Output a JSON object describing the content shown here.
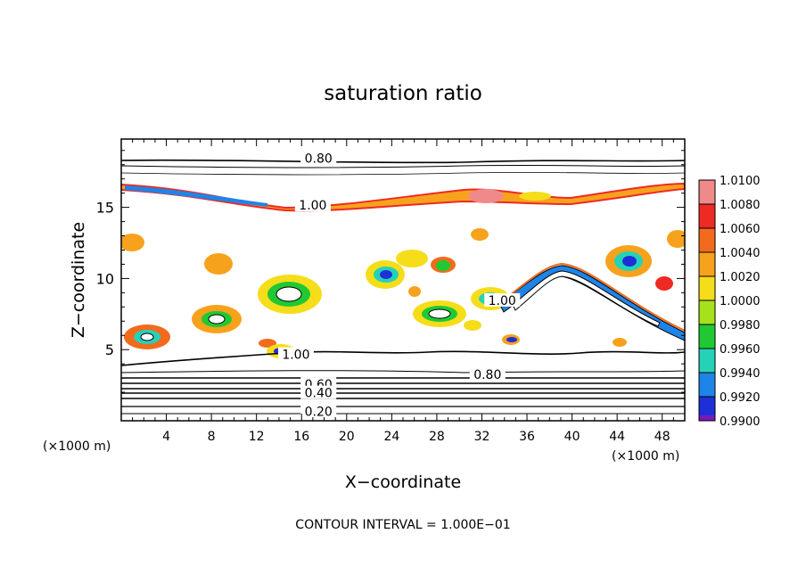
{
  "chart_data": {
    "type": "heatmap",
    "title": "saturation ratio",
    "xlabel": "X−coordinate",
    "ylabel": "Z−coordinate",
    "x_unit_left": "(×1000 m)",
    "x_unit_right": "(×1000 m)",
    "xlim": [
      0,
      50
    ],
    "ylim": [
      0,
      19.8
    ],
    "x_ticks": [
      4,
      8,
      12,
      16,
      20,
      24,
      28,
      32,
      36,
      40,
      44,
      48
    ],
    "y_ticks": [
      5,
      10,
      15
    ],
    "footer": "CONTOUR INTERVAL = 1.000E−01",
    "colorbar": {
      "levels": [
        "1.0100",
        "1.0080",
        "1.0060",
        "1.0040",
        "1.0020",
        "1.0000",
        "0.9980",
        "0.9960",
        "0.9940",
        "0.9920",
        "0.9900"
      ],
      "colors": [
        "#f08a8a",
        "#ee2a24",
        "#f26b1d",
        "#f7a21c",
        "#f5dd1a",
        "#a6e21c",
        "#20c933",
        "#25d2b8",
        "#1f84e8",
        "#1e2fd8",
        "#7a1ab8"
      ]
    },
    "contour_labels": [
      {
        "text": "0.80",
        "x": 17.5,
        "y": 18.4
      },
      {
        "text": "1.00",
        "x": 17.0,
        "y": 15.1
      },
      {
        "text": "1.00",
        "x": 33.8,
        "y": 8.4
      },
      {
        "text": "1.00",
        "x": 15.5,
        "y": 4.6
      },
      {
        "text": "0.80",
        "x": 32.5,
        "y": 3.2
      },
      {
        "text": "0.60",
        "x": 17.5,
        "y": 2.5
      },
      {
        "text": "0.40",
        "x": 17.5,
        "y": 1.9
      },
      {
        "text": "0.20",
        "x": 17.5,
        "y": 0.6
      }
    ]
  }
}
